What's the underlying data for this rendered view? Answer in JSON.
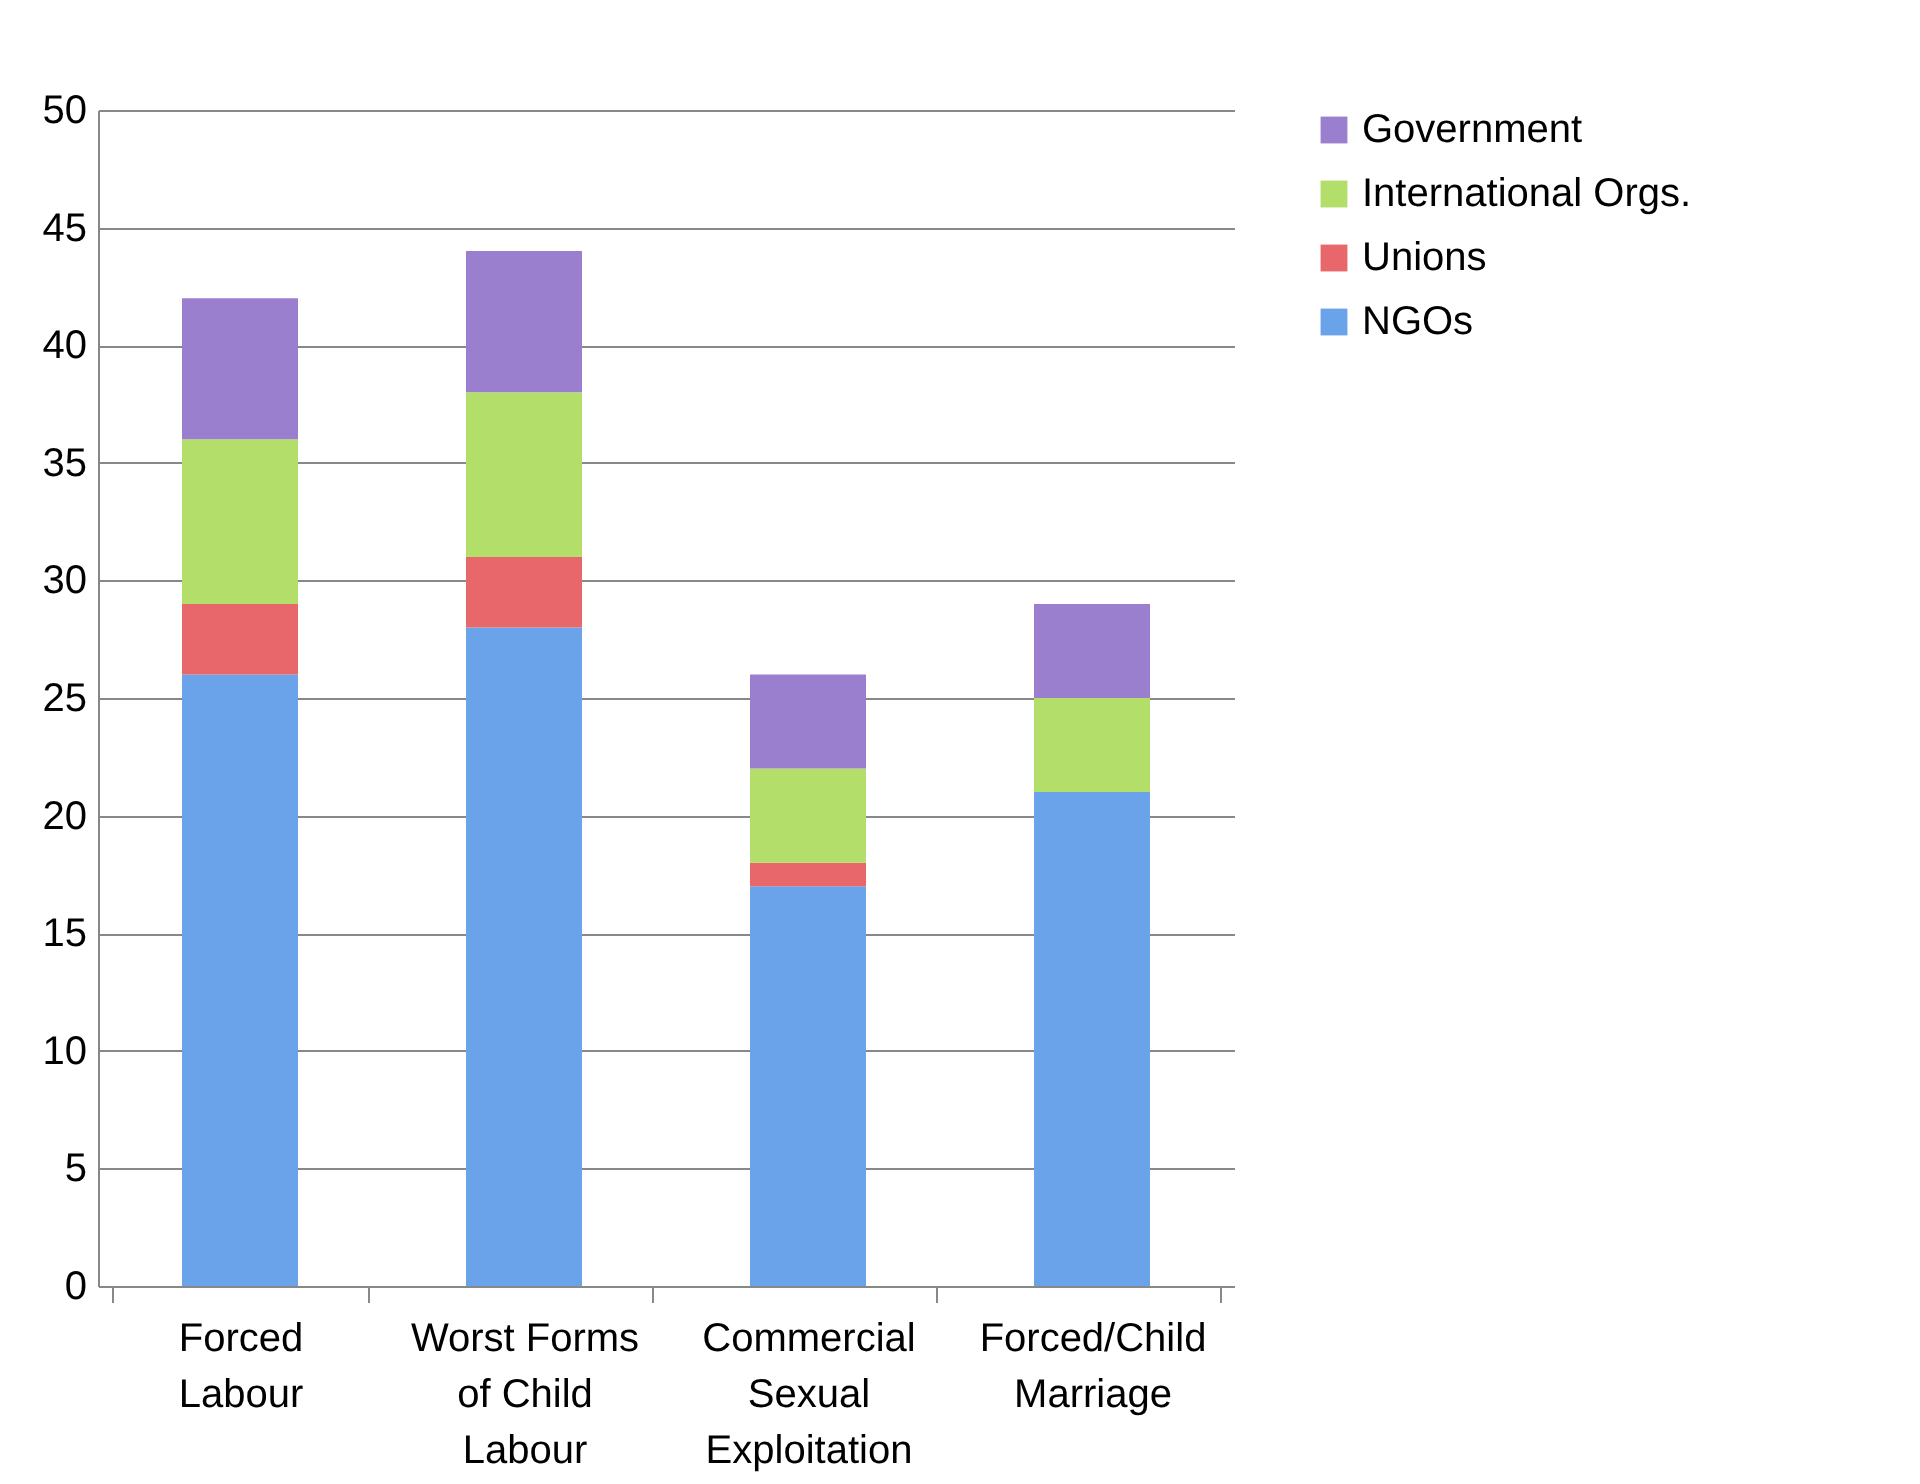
{
  "chart_data": {
    "type": "bar",
    "stacked": true,
    "categories": [
      "Forced Labour",
      "Worst Forms of Child Labour",
      "Commercial Sexual Exploitation",
      "Forced/Child Marriage"
    ],
    "series": [
      {
        "name": "NGOs",
        "color": "#6aa3ea",
        "values": [
          26,
          28,
          17,
          21
        ]
      },
      {
        "name": "Unions",
        "color": "#e8676a",
        "values": [
          3,
          3,
          1,
          0
        ]
      },
      {
        "name": "International Orgs.",
        "color": "#b4de6a",
        "values": [
          7,
          7,
          4,
          4
        ]
      },
      {
        "name": "Government",
        "color": "#9a7fcf",
        "values": [
          6,
          6,
          4,
          4
        ]
      }
    ],
    "ylim": [
      0,
      50
    ],
    "yticks": [
      0,
      5,
      10,
      15,
      20,
      25,
      30,
      35,
      40,
      45,
      50
    ],
    "grid": "y",
    "legend": "right"
  }
}
